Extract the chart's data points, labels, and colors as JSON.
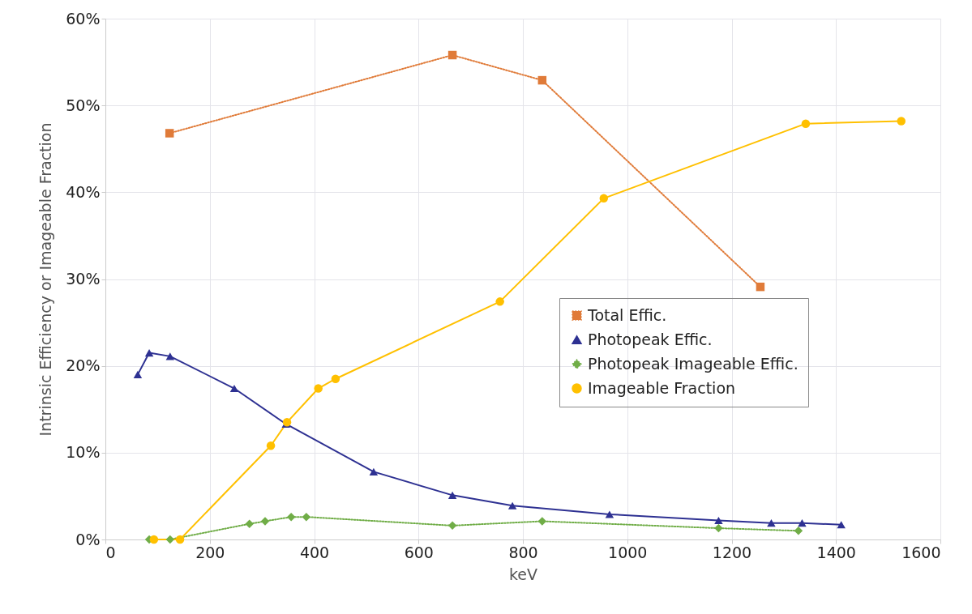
{
  "chart_data": {
    "type": "line",
    "xlabel": "keV",
    "ylabel": "Intrinsic Efficiency or Imageable Fraction",
    "xlim": [
      0,
      1600
    ],
    "xticks": [
      0,
      200,
      400,
      600,
      800,
      1000,
      1200,
      1400,
      1600
    ],
    "ylim": [
      0,
      60
    ],
    "yticks": [
      {
        "value": 0,
        "label": "0%"
      },
      {
        "value": 10,
        "label": "10%"
      },
      {
        "value": 20,
        "label": "20%"
      },
      {
        "value": 30,
        "label": "30%"
      },
      {
        "value": 40,
        "label": "40%"
      },
      {
        "value": 50,
        "label": "50%"
      },
      {
        "value": 60,
        "label": "60%"
      }
    ],
    "grid": true,
    "legend": "right",
    "series": [
      {
        "name": "Total Effic.",
        "color": "#e07b39",
        "marker": "square",
        "line_style": "dotted",
        "x": [
          123,
          665,
          837,
          1255
        ],
        "values": [
          46.8,
          55.8,
          52.9,
          29.1
        ]
      },
      {
        "name": "Photopeak Effic.",
        "color": "#2e3192",
        "marker": "triangle",
        "line_style": "solid",
        "x": [
          62,
          84,
          124,
          247,
          346,
          514,
          665,
          780,
          966,
          1175,
          1276,
          1335,
          1410
        ],
        "values": [
          19.0,
          21.5,
          21.1,
          17.4,
          13.3,
          7.8,
          5.1,
          3.9,
          2.9,
          2.2,
          1.9,
          1.9,
          1.7
        ]
      },
      {
        "name": "Photopeak Imageable Effic.",
        "color": "#70ad47",
        "marker": "diamond",
        "line_style": "dotted",
        "x": [
          84,
          124,
          276,
          306,
          356,
          385,
          665,
          837,
          1175,
          1328
        ],
        "values": [
          0,
          0,
          1.8,
          2.1,
          2.6,
          2.6,
          1.6,
          2.1,
          1.3,
          1.0
        ]
      },
      {
        "name": "Imageable Fraction",
        "color": "#ffc000",
        "marker": "circle",
        "line_style": "solid",
        "x": [
          93,
          143,
          317,
          348,
          408,
          441,
          756,
          955,
          1342,
          1525
        ],
        "values": [
          0,
          0,
          10.8,
          13.5,
          17.4,
          18.5,
          27.4,
          39.3,
          47.9,
          48.2
        ]
      }
    ]
  }
}
